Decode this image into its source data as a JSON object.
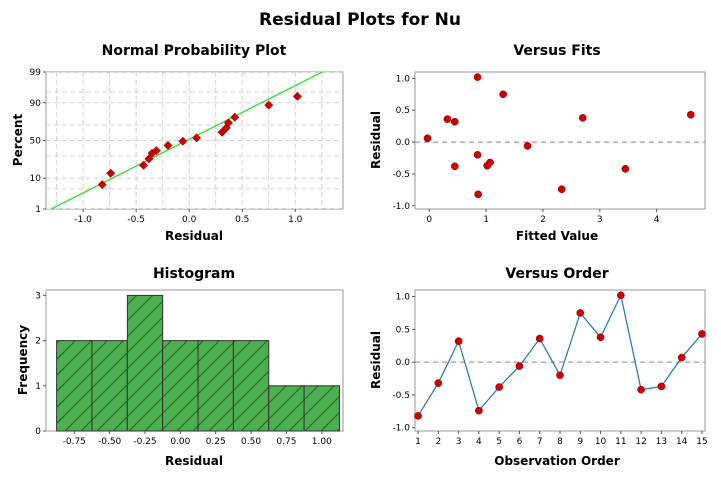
{
  "page_title": "Residual Plots for Nu",
  "colors": {
    "point": "#cc0000",
    "fit_line": "#33dd33",
    "hist_fill": "#4caf50",
    "order_line": "#1f77b4",
    "ref_line": "#888888"
  },
  "chart_data": [
    {
      "type": "scatter",
      "name": "normal-probability-plot",
      "title": "Normal Probability Plot",
      "xlabel": "Residual",
      "ylabel": "Percent",
      "xlim": [
        -1.35,
        1.45
      ],
      "xticks": [
        -1.0,
        -0.5,
        0.0,
        0.5,
        1.0
      ],
      "xtick_labels": [
        "-1.0",
        "-0.5",
        "0.0",
        "0.5",
        "1.0"
      ],
      "yticks": [
        1,
        10,
        50,
        90,
        99
      ],
      "ytick_labels": [
        "1",
        "10",
        "50",
        "90",
        "99"
      ],
      "grid_x": [
        -1.25,
        -0.75,
        -0.25,
        0.25,
        0.75,
        1.25
      ],
      "grid_y": [
        5,
        30,
        70,
        95
      ],
      "fit_line": {
        "x": [
          -1.3,
          1.3
        ],
        "y": [
          1,
          99.2
        ]
      },
      "points": [
        {
          "x": -0.82,
          "y": 6.7
        },
        {
          "x": -0.74,
          "y": 13.3
        },
        {
          "x": -0.43,
          "y": 20.0
        },
        {
          "x": -0.38,
          "y": 26.7
        },
        {
          "x": -0.35,
          "y": 33.3
        },
        {
          "x": -0.31,
          "y": 36.5
        },
        {
          "x": -0.2,
          "y": 43.3
        },
        {
          "x": -0.06,
          "y": 49.0
        },
        {
          "x": 0.07,
          "y": 53.5
        },
        {
          "x": 0.31,
          "y": 61.0
        },
        {
          "x": 0.35,
          "y": 66.7
        },
        {
          "x": 0.37,
          "y": 72.5
        },
        {
          "x": 0.43,
          "y": 78.5
        },
        {
          "x": 0.75,
          "y": 88.5
        },
        {
          "x": 1.02,
          "y": 93.3
        }
      ]
    },
    {
      "type": "scatter",
      "name": "versus-fits",
      "title": "Versus Fits",
      "xlabel": "Fitted Value",
      "ylabel": "Residual",
      "xlim": [
        -0.25,
        4.85
      ],
      "ylim": [
        -1.05,
        1.1
      ],
      "xticks": [
        0,
        1,
        2,
        3,
        4
      ],
      "xtick_labels": [
        "0",
        "1",
        "2",
        "3",
        "4"
      ],
      "yticks": [
        -1.0,
        -0.5,
        0.0,
        0.5,
        1.0
      ],
      "ytick_labels": [
        "-1.0",
        "-0.5",
        "0.0",
        "0.5",
        "1.0"
      ],
      "ref_y": 0,
      "points": [
        {
          "x": -0.03,
          "y": 0.06
        },
        {
          "x": 0.32,
          "y": 0.36
        },
        {
          "x": 0.45,
          "y": 0.32
        },
        {
          "x": 0.45,
          "y": -0.38
        },
        {
          "x": 0.85,
          "y": 1.02
        },
        {
          "x": 0.85,
          "y": -0.2
        },
        {
          "x": 0.86,
          "y": -0.82
        },
        {
          "x": 1.02,
          "y": -0.37
        },
        {
          "x": 1.07,
          "y": -0.32
        },
        {
          "x": 1.3,
          "y": 0.75
        },
        {
          "x": 1.73,
          "y": -0.06
        },
        {
          "x": 2.33,
          "y": -0.74
        },
        {
          "x": 2.7,
          "y": 0.38
        },
        {
          "x": 3.45,
          "y": -0.42
        },
        {
          "x": 4.6,
          "y": 0.43
        }
      ]
    },
    {
      "type": "bar",
      "name": "histogram",
      "title": "Histogram",
      "xlabel": "Residual",
      "ylabel": "Frequency",
      "xlim": [
        -0.95,
        1.15
      ],
      "ylim": [
        0,
        3.12
      ],
      "xticks": [
        -0.75,
        -0.5,
        -0.25,
        0.0,
        0.25,
        0.5,
        0.75,
        1.0
      ],
      "xtick_labels": [
        "-0.75",
        "-0.50",
        "-0.25",
        "0.00",
        "0.25",
        "0.50",
        "0.75",
        "1.00"
      ],
      "yticks": [
        0,
        1,
        2,
        3
      ],
      "ytick_labels": [
        "0",
        "1",
        "2",
        "3"
      ],
      "bin_edges": [
        -0.875,
        -0.625,
        -0.375,
        -0.125,
        0.125,
        0.375,
        0.625,
        0.875,
        1.125
      ],
      "values": [
        2,
        2,
        3,
        2,
        2,
        2,
        1,
        1
      ]
    },
    {
      "type": "line",
      "name": "versus-order",
      "title": "Versus Order",
      "xlabel": "Observation Order",
      "ylabel": "Residual",
      "xlim": [
        0.85,
        15.15
      ],
      "ylim": [
        -1.05,
        1.1
      ],
      "xticks": [
        1,
        2,
        3,
        4,
        5,
        6,
        7,
        8,
        9,
        10,
        11,
        12,
        13,
        14,
        15
      ],
      "xtick_labels": [
        "1",
        "2",
        "3",
        "4",
        "5",
        "6",
        "7",
        "8",
        "9",
        "10",
        "11",
        "12",
        "13",
        "14",
        "15"
      ],
      "yticks": [
        -1.0,
        -0.5,
        0.0,
        0.5,
        1.0
      ],
      "ytick_labels": [
        "-1.0",
        "-0.5",
        "0.0",
        "0.5",
        "1.0"
      ],
      "ref_y": 0,
      "x": [
        1,
        2,
        3,
        4,
        5,
        6,
        7,
        8,
        9,
        10,
        11,
        12,
        13,
        14,
        15
      ],
      "y": [
        -0.82,
        -0.32,
        0.32,
        -0.74,
        -0.38,
        -0.06,
        0.36,
        -0.2,
        0.75,
        0.38,
        1.02,
        -0.42,
        -0.37,
        0.07,
        0.43
      ]
    }
  ]
}
